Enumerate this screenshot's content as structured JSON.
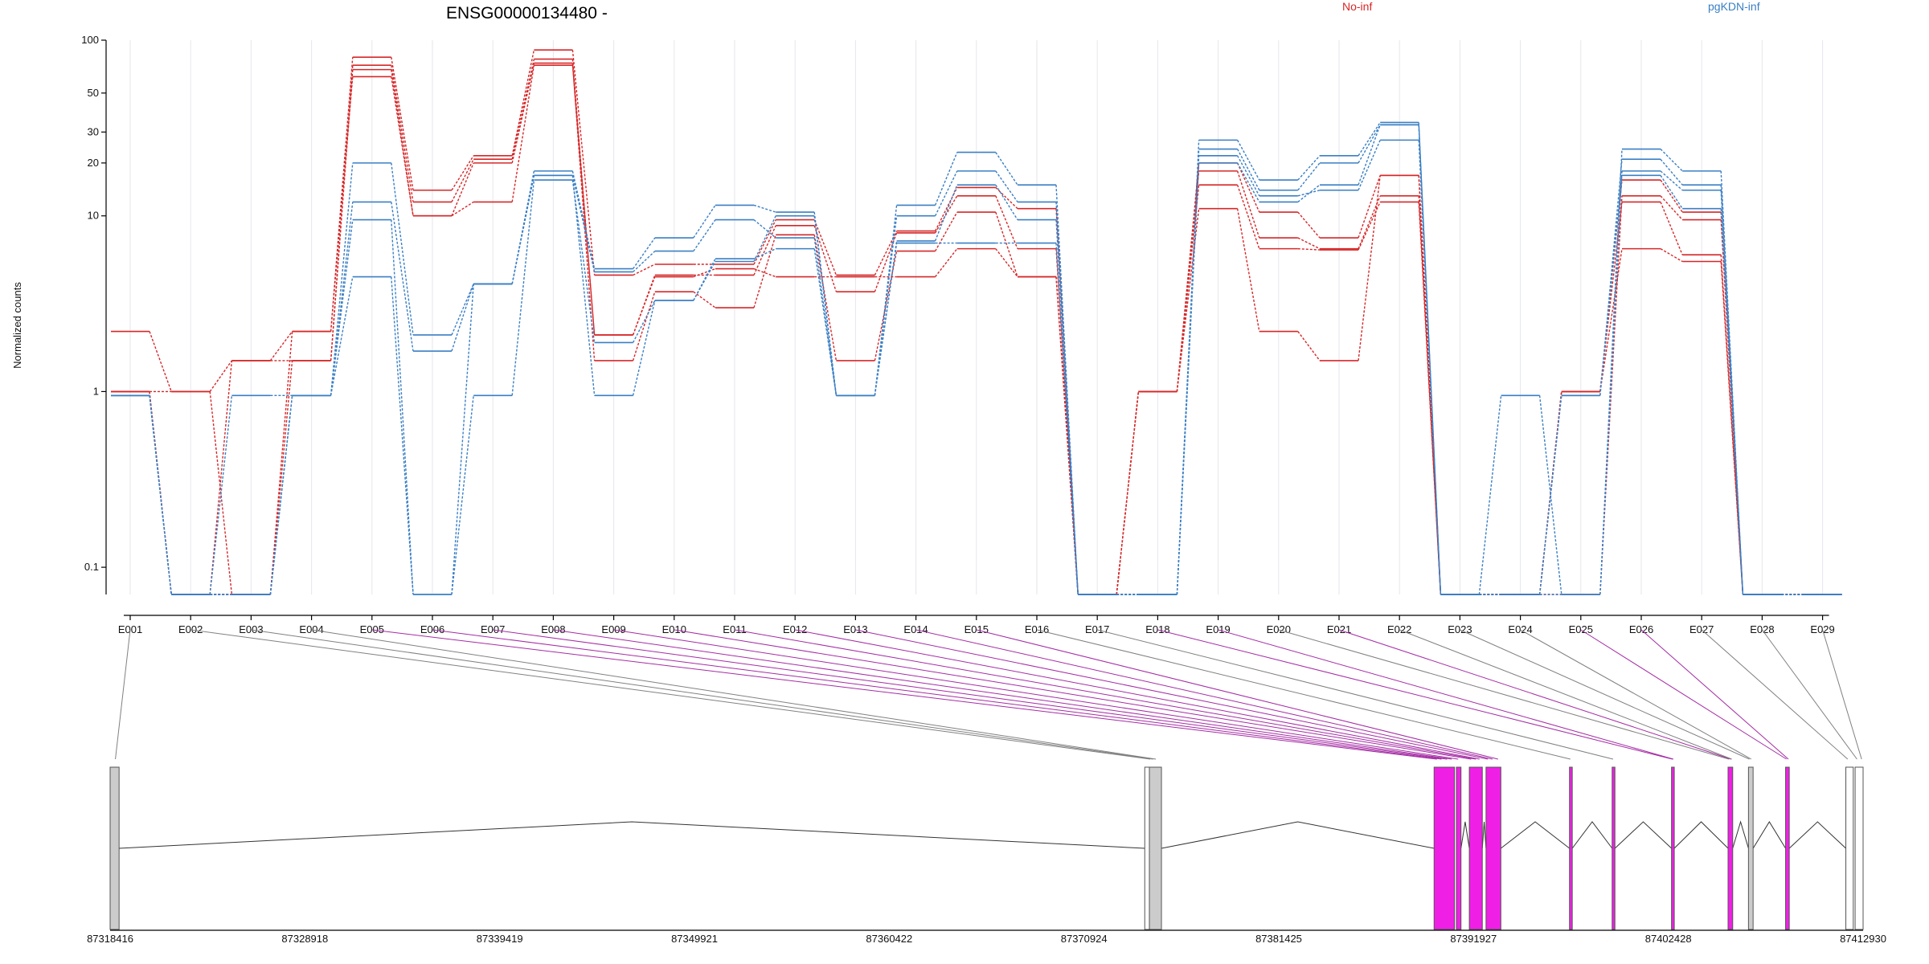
{
  "chart_data": {
    "type": "line",
    "title": "ENSG00000134480 -",
    "ylabel": "Normalized counts",
    "yscale": "log",
    "ylim": [
      0.07,
      100
    ],
    "y_ticks": [
      {
        "value": 0.1,
        "label": "0.1"
      },
      {
        "value": 1,
        "label": "1"
      },
      {
        "value": 10,
        "label": "10"
      },
      {
        "value": 20,
        "label": "20"
      },
      {
        "value": 30,
        "label": "30"
      },
      {
        "value": 50,
        "label": "50"
      },
      {
        "value": 100,
        "label": "100"
      }
    ],
    "grid": "vertical",
    "legend": [
      {
        "name": "No-inf",
        "color": "#d62728"
      },
      {
        "name": "pgKDN-inf",
        "color": "#3a7fc4"
      }
    ],
    "categories": [
      "E001",
      "E002",
      "E003",
      "E004",
      "E005",
      "E006",
      "E007",
      "E008",
      "E009",
      "E010",
      "E011",
      "E012",
      "E013",
      "E014",
      "E015",
      "E016",
      "E017",
      "E018",
      "E019",
      "E020",
      "E021",
      "E022",
      "E023",
      "E024",
      "E025",
      "E026",
      "E027",
      "E028",
      "E029"
    ],
    "series": [
      {
        "group": "No-inf",
        "values": [
          2.2,
          1,
          1.5,
          2.2,
          80,
          14,
          22,
          88,
          4.6,
          5.3,
          5.3,
          9.5,
          4.6,
          8.2,
          14.5,
          11,
          0.07,
          1,
          20,
          10.5,
          7.5,
          17,
          0.07,
          0.07,
          1,
          16,
          10.5,
          0.07,
          0.07
        ]
      },
      {
        "group": "No-inf",
        "values": [
          1,
          0.07,
          0.07,
          1.5,
          72,
          12,
          21,
          78,
          2.1,
          4.6,
          4.6,
          8.8,
          3.7,
          8,
          13,
          6.5,
          0.07,
          1,
          18,
          7.5,
          6.5,
          13,
          0.07,
          0.07,
          0.07,
          13,
          9.5,
          0.07,
          0.07
        ]
      },
      {
        "group": "No-inf",
        "values": [
          1,
          0.07,
          1.5,
          1.5,
          68,
          10,
          20,
          74,
          1.5,
          3.7,
          3.0,
          7.8,
          1.5,
          6.3,
          10.5,
          4.5,
          0.07,
          1,
          15,
          6.5,
          6.4,
          12,
          0.07,
          0.07,
          1,
          12,
          6.0,
          0.07,
          0.07
        ]
      },
      {
        "group": "No-inf",
        "values": [
          1,
          1,
          0.07,
          2.2,
          62,
          10,
          12,
          72,
          2.1,
          4.5,
          5.0,
          4.5,
          4.5,
          4.5,
          6.5,
          4.5,
          0.07,
          1,
          11,
          2.2,
          1.5,
          17,
          0.07,
          0.07,
          1,
          6.5,
          5.5,
          0.07,
          0.07
        ]
      },
      {
        "group": "pgKDN-inf",
        "values": [
          0.95,
          0.07,
          0.95,
          0.95,
          20,
          2.1,
          4.1,
          18,
          5.0,
          7.5,
          11.5,
          10.5,
          0.95,
          11.5,
          23,
          15,
          0.07,
          0.07,
          27,
          16,
          22,
          34,
          0.07,
          0.95,
          0.07,
          24,
          18,
          0.07,
          0.07
        ]
      },
      {
        "group": "pgKDN-inf",
        "values": [
          0.95,
          0.07,
          0.07,
          0.95,
          12,
          1.7,
          4.1,
          17,
          4.8,
          6.3,
          9.5,
          7.5,
          0.95,
          10,
          18,
          12,
          0.07,
          0.07,
          24,
          14,
          20,
          33,
          0.07,
          0.07,
          0.95,
          21,
          15,
          0.07,
          0.07
        ]
      },
      {
        "group": "pgKDN-inf",
        "values": [
          0.95,
          0.07,
          0.07,
          0.95,
          9.5,
          0.07,
          0.95,
          16,
          1.9,
          3.3,
          5.7,
          6.5,
          0.95,
          7.2,
          15,
          9.5,
          0.07,
          0.07,
          22,
          13,
          14,
          27,
          0.07,
          0.07,
          0.07,
          18,
          14,
          0.07,
          0.07
        ]
      },
      {
        "group": "pgKDN-inf",
        "values": [
          0.95,
          0.07,
          0.07,
          0.95,
          4.5,
          0.07,
          4.1,
          17,
          0.95,
          3.3,
          5.5,
          10,
          0.95,
          7.0,
          7,
          7,
          0.07,
          0.07,
          20,
          12,
          15,
          33,
          0.07,
          0.07,
          0.95,
          17,
          11,
          0.07,
          0.07
        ]
      }
    ],
    "gene_model": {
      "coord_ticks": [
        "87318416",
        "87328918",
        "87339419",
        "87349921",
        "87360422",
        "87370924",
        "87381425",
        "87391927",
        "87402428",
        "87412930"
      ],
      "coord_range": [
        87318416,
        87412930
      ],
      "exons": [
        {
          "start": 87318416,
          "end": 87318900,
          "type": "utr"
        },
        {
          "start": 87374200,
          "end": 87374450,
          "type": "outline"
        },
        {
          "start": 87374450,
          "end": 87375100,
          "type": "utr"
        },
        {
          "start": 87389800,
          "end": 87390900,
          "type": "cds"
        },
        {
          "start": 87391000,
          "end": 87391250,
          "type": "cds"
        },
        {
          "start": 87391700,
          "end": 87392400,
          "type": "cds"
        },
        {
          "start": 87392600,
          "end": 87393400,
          "type": "cds"
        },
        {
          "start": 87397100,
          "end": 87397250,
          "type": "cds"
        },
        {
          "start": 87399400,
          "end": 87399550,
          "type": "cds"
        },
        {
          "start": 87402600,
          "end": 87402750,
          "type": "cds"
        },
        {
          "start": 87405650,
          "end": 87405900,
          "type": "cds"
        },
        {
          "start": 87406750,
          "end": 87407000,
          "type": "utr"
        },
        {
          "start": 87408750,
          "end": 87408950,
          "type": "cds"
        },
        {
          "start": 87412000,
          "end": 87412400,
          "type": "outline"
        },
        {
          "start": 87412500,
          "end": 87412930,
          "type": "outline"
        }
      ],
      "exon_map": [
        {
          "coord": 87318700,
          "type": "utr"
        },
        {
          "coord": 87374500,
          "type": "utr"
        },
        {
          "coord": 87374650,
          "type": "utr"
        },
        {
          "coord": 87374800,
          "type": "utr"
        },
        {
          "coord": 87389950,
          "type": "cds"
        },
        {
          "coord": 87390200,
          "type": "cds"
        },
        {
          "coord": 87390500,
          "type": "cds"
        },
        {
          "coord": 87390750,
          "type": "cds"
        },
        {
          "coord": 87391100,
          "type": "cds"
        },
        {
          "coord": 87391800,
          "type": "cds"
        },
        {
          "coord": 87392050,
          "type": "cds"
        },
        {
          "coord": 87392250,
          "type": "cds"
        },
        {
          "coord": 87392700,
          "type": "cds"
        },
        {
          "coord": 87392950,
          "type": "cds"
        },
        {
          "coord": 87393250,
          "type": "cds"
        },
        {
          "coord": 87397150,
          "type": "utr"
        },
        {
          "coord": 87399450,
          "type": "utr"
        },
        {
          "coord": 87402650,
          "type": "cds"
        },
        {
          "coord": 87402700,
          "type": "cds"
        },
        {
          "coord": 87405700,
          "type": "utr"
        },
        {
          "coord": 87405800,
          "type": "cds"
        },
        {
          "coord": 87405850,
          "type": "utr"
        },
        {
          "coord": 87406800,
          "type": "utr"
        },
        {
          "coord": 87406900,
          "type": "utr"
        },
        {
          "coord": 87408800,
          "type": "cds"
        },
        {
          "coord": 87408900,
          "type": "cds"
        },
        {
          "coord": 87412100,
          "type": "utr"
        },
        {
          "coord": 87412600,
          "type": "utr"
        },
        {
          "coord": 87412850,
          "type": "utr"
        }
      ]
    }
  },
  "colors": {
    "no_inf": "#d62728",
    "pgkdn_inf": "#3a7fc4",
    "cds_exon": "#f01fe6",
    "utr_exon": "#cccccc",
    "map_cds": "#a52ca5",
    "map_utr": "#808080",
    "grid": "#e6e6ee"
  }
}
